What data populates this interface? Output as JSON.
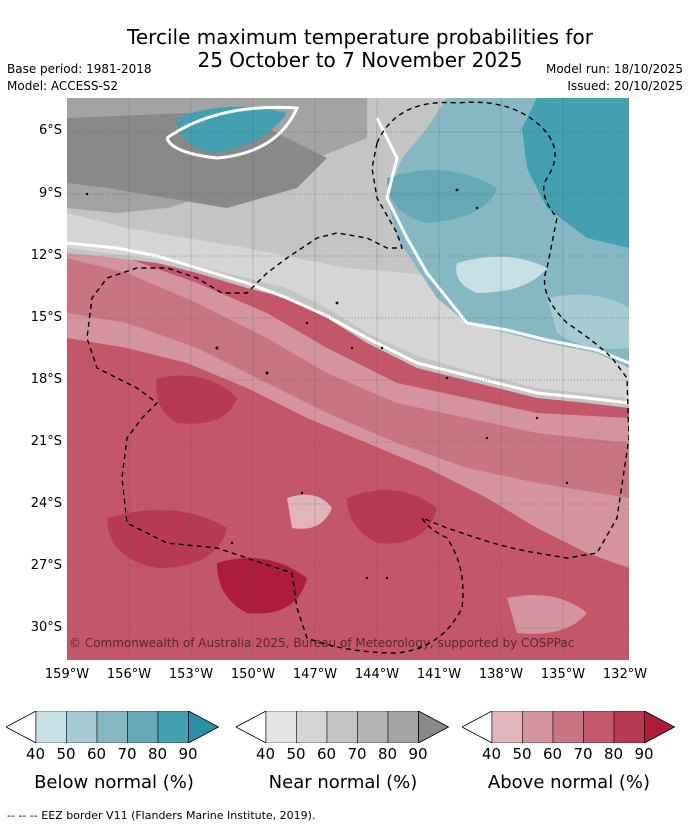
{
  "title_line1": "Tercile maximum temperature probabilities for",
  "title_line2": "25 October to 7 November 2025",
  "base_period": "Base period: 1981-2018",
  "model": "Model: ACCESS-S2",
  "model_run": "Model run: 18/10/2025",
  "issued": "Issued: 20/10/2025",
  "y_axis_ticks": [
    "6°S",
    "9°S",
    "12°S",
    "15°S",
    "18°S",
    "21°S",
    "24°S",
    "27°S",
    "30°S"
  ],
  "x_axis_ticks": [
    "159°W",
    "156°W",
    "153°W",
    "150°W",
    "147°W",
    "144°W",
    "141°W",
    "138°W",
    "135°W",
    "132°W"
  ],
  "copyright": "© Commonwealth of Australia 2025, Bureau of Meteorology, supported by COSPPac",
  "colorbars": [
    {
      "name": "Below normal (%)",
      "ticks": [
        "40",
        "50",
        "60",
        "70",
        "80",
        "90"
      ],
      "colors": [
        "#ffffff",
        "#c7e0e6",
        "#a6cbd3",
        "#86b8c3",
        "#65a9b6",
        "#42a0b1",
        "#2b8fa3"
      ]
    },
    {
      "name": "Near normal (%)",
      "ticks": [
        "40",
        "50",
        "60",
        "70",
        "80",
        "90"
      ],
      "colors": [
        "#ffffff",
        "#e5e5e5",
        "#d5d5d5",
        "#c4c4c4",
        "#b4b4b4",
        "#a3a3a3",
        "#898989"
      ]
    },
    {
      "name": "Above normal (%)",
      "ticks": [
        "40",
        "50",
        "60",
        "70",
        "80",
        "90"
      ],
      "colors": [
        "#ffffff",
        "#e2b4bc",
        "#d4949f",
        "#c97482",
        "#c25a6c",
        "#b83a52",
        "#ad1d3b"
      ]
    }
  ],
  "legend_footnote": "--  --  -- EEZ border V11 (Flanders Marine Institute, 2019)."
}
